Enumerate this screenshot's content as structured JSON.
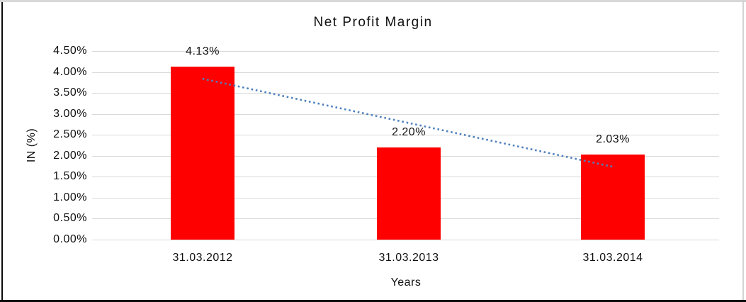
{
  "chart_data": {
    "type": "bar",
    "title": "Net Profit Margin",
    "xlabel": "Years",
    "ylabel": "IN (%)",
    "categories": [
      "31.03.2012",
      "31.03.2013",
      "31.03.2014"
    ],
    "values": [
      4.13,
      2.2,
      2.03
    ],
    "data_labels": [
      "4.13%",
      "2.20%",
      "2.03%"
    ],
    "y_ticks": [
      {
        "value": 4.5,
        "label": "4.50%"
      },
      {
        "value": 4.0,
        "label": "4.00%"
      },
      {
        "value": 3.5,
        "label": "3.50%"
      },
      {
        "value": 3.0,
        "label": "3.00%"
      },
      {
        "value": 2.5,
        "label": "2.50%"
      },
      {
        "value": 2.0,
        "label": "2.00%"
      },
      {
        "value": 1.5,
        "label": "1.50%"
      },
      {
        "value": 1.0,
        "label": "1.00%"
      },
      {
        "value": 0.5,
        "label": "0.50%"
      },
      {
        "value": 0.0,
        "label": "0.00%"
      }
    ],
    "ylim": [
      0,
      4.5
    ],
    "grid": true,
    "legend": "none",
    "colors": {
      "bar": "#ff0000",
      "trendline": "#4f81bd",
      "gridline": "#d9d9d9",
      "axis_line": "#d9d9d9",
      "text": "#000000"
    },
    "trendline": {
      "type": "linear",
      "style": "dotted",
      "start_value": 3.84,
      "end_value": 1.74
    }
  }
}
